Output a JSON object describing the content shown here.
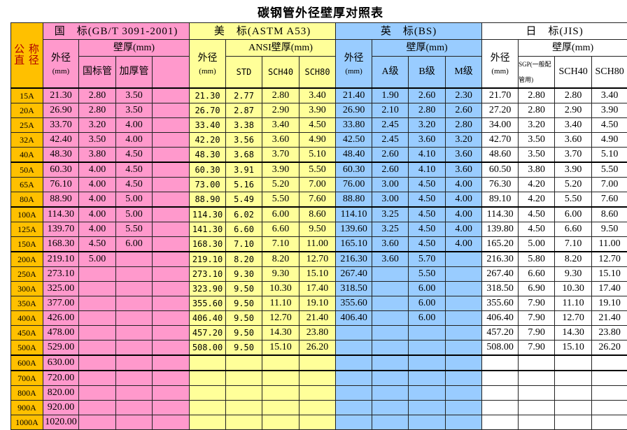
{
  "title": "碳钢管外径壁厚对照表",
  "colors": {
    "nominal": "#FFC000",
    "gb": "#FF99CC",
    "astm": "#FFFF99",
    "bs": "#99CCFF",
    "jis": "#FFFFFF"
  },
  "header": {
    "nominal": "公 称 直 径",
    "gb": {
      "title": "国　标(GB/T 3091-2001)",
      "od": "外径",
      "od_unit": "(mm)",
      "wall": "壁厚(mm)",
      "cols": [
        "国标管",
        "加厚管",
        ""
      ]
    },
    "astm": {
      "title": "美　标(ASTM A53)",
      "od": "外径",
      "od_unit": "(mm)",
      "wall": "ANSI壁厚(mm)",
      "cols": [
        "STD",
        "SCH40",
        "SCH80"
      ]
    },
    "bs": {
      "title": "英　标(BS)",
      "od": "外径",
      "od_unit": "(mm)",
      "wall": "壁厚(mm)",
      "cols": [
        "A级",
        "B级",
        "M级"
      ]
    },
    "jis": {
      "title": "日　标(JIS)",
      "od": "外径",
      "od_unit": "(mm)",
      "wall": "壁厚(mm)",
      "cols": [
        "SGP(一般配管用)",
        "SCH40",
        "SCH80"
      ]
    }
  },
  "rows": [
    [
      "15A",
      "21.30",
      "2.80",
      "3.50",
      "",
      "21.30",
      "2.77",
      "2.80",
      "3.40",
      "21.40",
      "1.90",
      "2.60",
      "2.30",
      "21.70",
      "2.80",
      "2.80",
      "3.40"
    ],
    [
      "20A",
      "26.90",
      "2.80",
      "3.50",
      "",
      "26.70",
      "2.87",
      "2.90",
      "3.90",
      "26.90",
      "2.10",
      "2.80",
      "2.60",
      "27.20",
      "2.80",
      "2.90",
      "3.90"
    ],
    [
      "25A",
      "33.70",
      "3.20",
      "4.00",
      "",
      "33.40",
      "3.38",
      "3.40",
      "4.50",
      "33.80",
      "2.45",
      "3.20",
      "2.80",
      "34.00",
      "3.20",
      "3.40",
      "4.50"
    ],
    [
      "32A",
      "42.40",
      "3.50",
      "4.00",
      "",
      "42.20",
      "3.56",
      "3.60",
      "4.90",
      "42.50",
      "2.45",
      "3.60",
      "3.20",
      "42.70",
      "3.50",
      "3.60",
      "4.90"
    ],
    [
      "40A",
      "48.30",
      "3.80",
      "4.50",
      "",
      "48.30",
      "3.68",
      "3.70",
      "5.10",
      "48.40",
      "2.60",
      "4.10",
      "3.60",
      "48.60",
      "3.50",
      "3.70",
      "5.10"
    ],
    [
      "50A",
      "60.30",
      "4.00",
      "4.50",
      "",
      "60.30",
      "3.91",
      "3.90",
      "5.50",
      "60.30",
      "2.60",
      "4.10",
      "3.60",
      "60.50",
      "3.80",
      "3.90",
      "5.50"
    ],
    [
      "65A",
      "76.10",
      "4.00",
      "4.50",
      "",
      "73.00",
      "5.16",
      "5.20",
      "7.00",
      "76.00",
      "3.00",
      "4.50",
      "4.00",
      "76.30",
      "4.20",
      "5.20",
      "7.00"
    ],
    [
      "80A",
      "88.90",
      "4.00",
      "5.00",
      "",
      "88.90",
      "5.49",
      "5.50",
      "7.60",
      "88.80",
      "3.00",
      "4.50",
      "4.00",
      "89.10",
      "4.20",
      "5.50",
      "7.60"
    ],
    [
      "100A",
      "114.30",
      "4.00",
      "5.00",
      "",
      "114.30",
      "6.02",
      "6.00",
      "8.60",
      "114.10",
      "3.25",
      "4.50",
      "4.00",
      "114.30",
      "4.50",
      "6.00",
      "8.60"
    ],
    [
      "125A",
      "139.70",
      "4.00",
      "5.50",
      "",
      "141.30",
      "6.60",
      "6.60",
      "9.50",
      "139.60",
      "3.25",
      "4.50",
      "4.00",
      "139.80",
      "4.50",
      "6.60",
      "9.50"
    ],
    [
      "150A",
      "168.30",
      "4.50",
      "6.00",
      "",
      "168.30",
      "7.10",
      "7.10",
      "11.00",
      "165.10",
      "3.60",
      "4.50",
      "4.00",
      "165.20",
      "5.00",
      "7.10",
      "11.00"
    ],
    [
      "200A",
      "219.10",
      "5.00",
      "",
      "",
      "219.10",
      "8.20",
      "8.20",
      "12.70",
      "216.30",
      "3.60",
      "5.70",
      "",
      "216.30",
      "5.80",
      "8.20",
      "12.70"
    ],
    [
      "250A",
      "273.10",
      "",
      "",
      "",
      "273.10",
      "9.30",
      "9.30",
      "15.10",
      "267.40",
      "",
      "5.50",
      "",
      "267.40",
      "6.60",
      "9.30",
      "15.10"
    ],
    [
      "300A",
      "325.00",
      "",
      "",
      "",
      "323.90",
      "9.50",
      "10.30",
      "17.40",
      "318.50",
      "",
      "6.00",
      "",
      "318.50",
      "6.90",
      "10.30",
      "17.40"
    ],
    [
      "350A",
      "377.00",
      "",
      "",
      "",
      "355.60",
      "9.50",
      "11.10",
      "19.10",
      "355.60",
      "",
      "6.00",
      "",
      "355.60",
      "7.90",
      "11.10",
      "19.10"
    ],
    [
      "400A",
      "426.00",
      "",
      "",
      "",
      "406.40",
      "9.50",
      "12.70",
      "21.40",
      "406.40",
      "",
      "6.00",
      "",
      "406.40",
      "7.90",
      "12.70",
      "21.40"
    ],
    [
      "450A",
      "478.00",
      "",
      "",
      "",
      "457.20",
      "9.50",
      "14.30",
      "23.80",
      "",
      "",
      "",
      "",
      "457.20",
      "7.90",
      "14.30",
      "23.80"
    ],
    [
      "500A",
      "529.00",
      "",
      "",
      "",
      "508.00",
      "9.50",
      "15.10",
      "26.20",
      "",
      "",
      "",
      "",
      "508.00",
      "7.90",
      "15.10",
      "26.20"
    ],
    [
      "600A",
      "630.00",
      "",
      "",
      "",
      "",
      "",
      "",
      "",
      "",
      "",
      "",
      "",
      "",
      "",
      "",
      ""
    ],
    [
      "700A",
      "720.00",
      "",
      "",
      "",
      "",
      "",
      "",
      "",
      "",
      "",
      "",
      "",
      "",
      "",
      "",
      ""
    ],
    [
      "800A",
      "820.00",
      "",
      "",
      "",
      "",
      "",
      "",
      "",
      "",
      "",
      "",
      "",
      "",
      "",
      "",
      ""
    ],
    [
      "900A",
      "920.00",
      "",
      "",
      "",
      "",
      "",
      "",
      "",
      "",
      "",
      "",
      "",
      "",
      "",
      "",
      ""
    ],
    [
      "1000A",
      "1020.00",
      "",
      "",
      "",
      "",
      "",
      "",
      "",
      "",
      "",
      "",
      "",
      "",
      "",
      "",
      ""
    ]
  ]
}
